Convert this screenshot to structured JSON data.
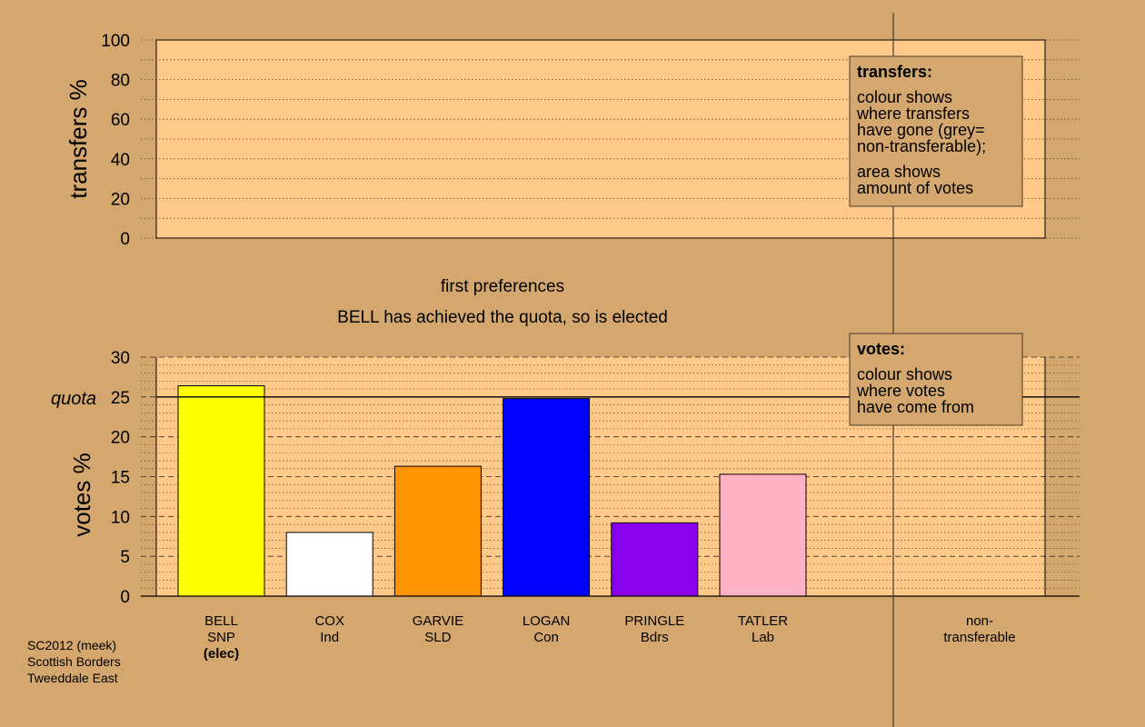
{
  "chart_data": [
    {
      "type": "bar",
      "panel": "transfers",
      "ylabel": "transfers %",
      "ylim": [
        0,
        100
      ],
      "yticks": [
        0,
        20,
        40,
        60,
        80,
        100
      ],
      "values": [],
      "legend_box": {
        "title": "transfers:",
        "lines": [
          "colour shows",
          "where transfers",
          "have gone (grey=",
          "non-transferable);",
          "area shows",
          "amount of votes"
        ]
      }
    },
    {
      "type": "bar",
      "panel": "votes",
      "title": "first preferences",
      "subtitle": "BELL has achieved the quota, so is elected",
      "ylabel": "votes %",
      "ylim": [
        0,
        30
      ],
      "yticks": [
        0,
        5,
        10,
        15,
        20,
        25,
        30
      ],
      "quota": 25,
      "quota_label": "quota",
      "categories": [
        {
          "name": "BELL",
          "party": "SNP",
          "note": "(elec)",
          "value": 26.4,
          "color": "#ffff00"
        },
        {
          "name": "COX",
          "party": "Ind",
          "note": "",
          "value": 8.0,
          "color": "#ffffff"
        },
        {
          "name": "GARVIE",
          "party": "SLD",
          "note": "",
          "value": 16.3,
          "color": "#ff9400"
        },
        {
          "name": "LOGAN",
          "party": "Con",
          "note": "",
          "value": 24.8,
          "color": "#0000ff"
        },
        {
          "name": "PRINGLE",
          "party": "Bdrs",
          "note": "",
          "value": 9.2,
          "color": "#8c00f0"
        },
        {
          "name": "TATLER",
          "party": "Lab",
          "note": "",
          "value": 15.3,
          "color": "#ffb2c4"
        }
      ],
      "nontransferable_label": [
        "non-",
        "transferable"
      ],
      "legend_box": {
        "title": "votes:",
        "lines": [
          "colour shows",
          "where votes",
          "have come from"
        ]
      }
    }
  ],
  "footer": {
    "lines": [
      "SC2012 (meek)",
      "Scottish Borders",
      "Tweeddale East"
    ]
  },
  "colors": {
    "background": "#d4a76f",
    "panel": "#ffc98a"
  }
}
